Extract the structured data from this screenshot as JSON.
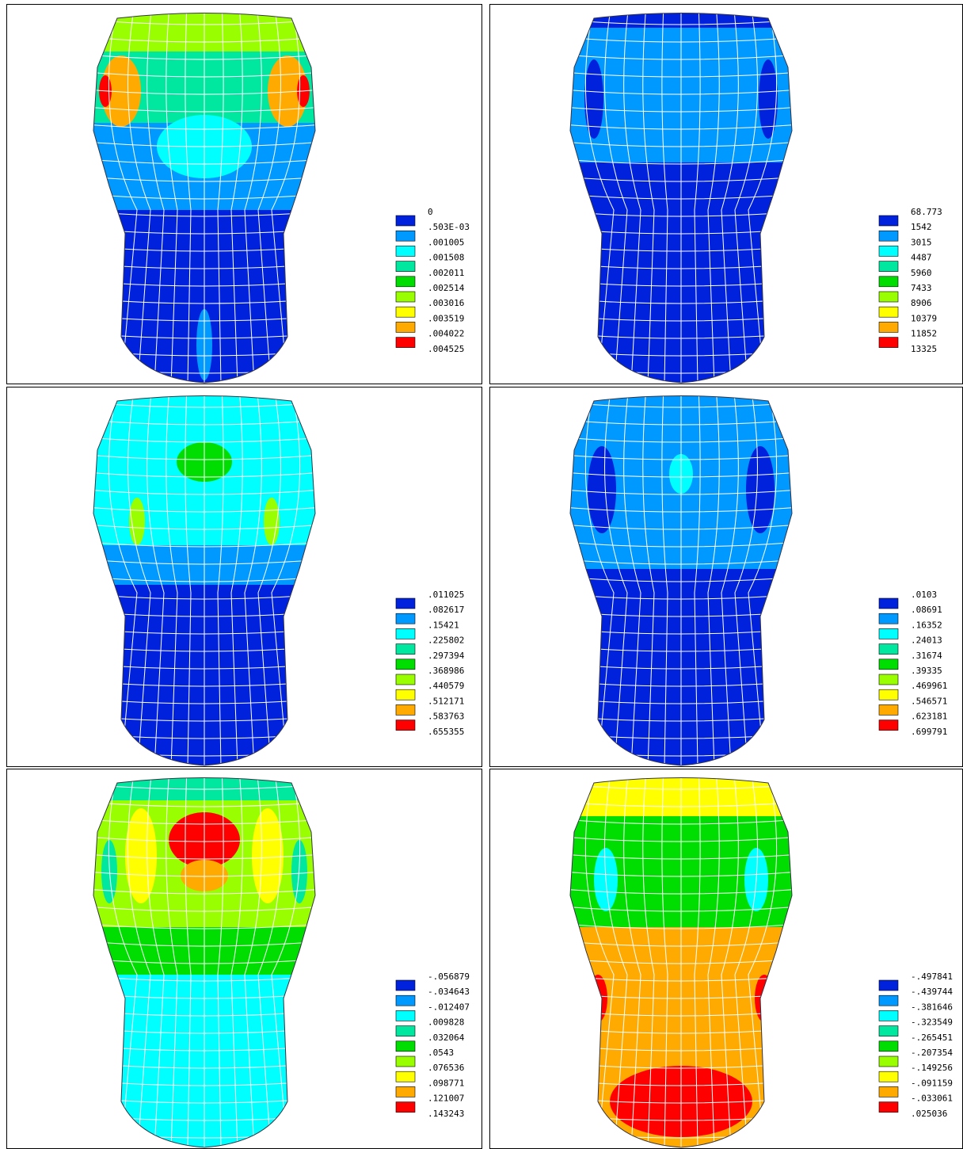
{
  "palette": [
    "#0022dd",
    "#0099ff",
    "#00ffff",
    "#00e8a0",
    "#00dd00",
    "#99ff00",
    "#ffff00",
    "#ffaa00",
    "#ff0000"
  ],
  "panels": [
    {
      "legend": [
        "0",
        ".503E-03",
        ".001005",
        ".001508",
        ".002011",
        ".002514",
        ".003016",
        ".003519",
        ".004022",
        ".004525"
      ]
    },
    {
      "legend": [
        "68.773",
        "1542",
        "3015",
        "4487",
        "5960",
        "7433",
        "8906",
        "10379",
        "11852",
        "13325"
      ]
    },
    {
      "legend": [
        ".011025",
        ".082617",
        ".15421",
        ".225802",
        ".297394",
        ".368986",
        ".440579",
        ".512171",
        ".583763",
        ".655355"
      ]
    },
    {
      "legend": [
        ".0103",
        ".08691",
        ".16352",
        ".24013",
        ".31674",
        ".39335",
        ".469961",
        ".546571",
        ".623181",
        ".699791"
      ]
    },
    {
      "legend": [
        "-.056879",
        "-.034643",
        "-.012407",
        ".009828",
        ".032064",
        ".0543",
        ".076536",
        ".098771",
        ".121007",
        ".143243"
      ]
    },
    {
      "legend": [
        "-.497841",
        "-.439744",
        "-.381646",
        "-.323549",
        "-.265451",
        "-.207354",
        "-.149256",
        "-.091159",
        "-.033061",
        ".025036"
      ]
    }
  ]
}
